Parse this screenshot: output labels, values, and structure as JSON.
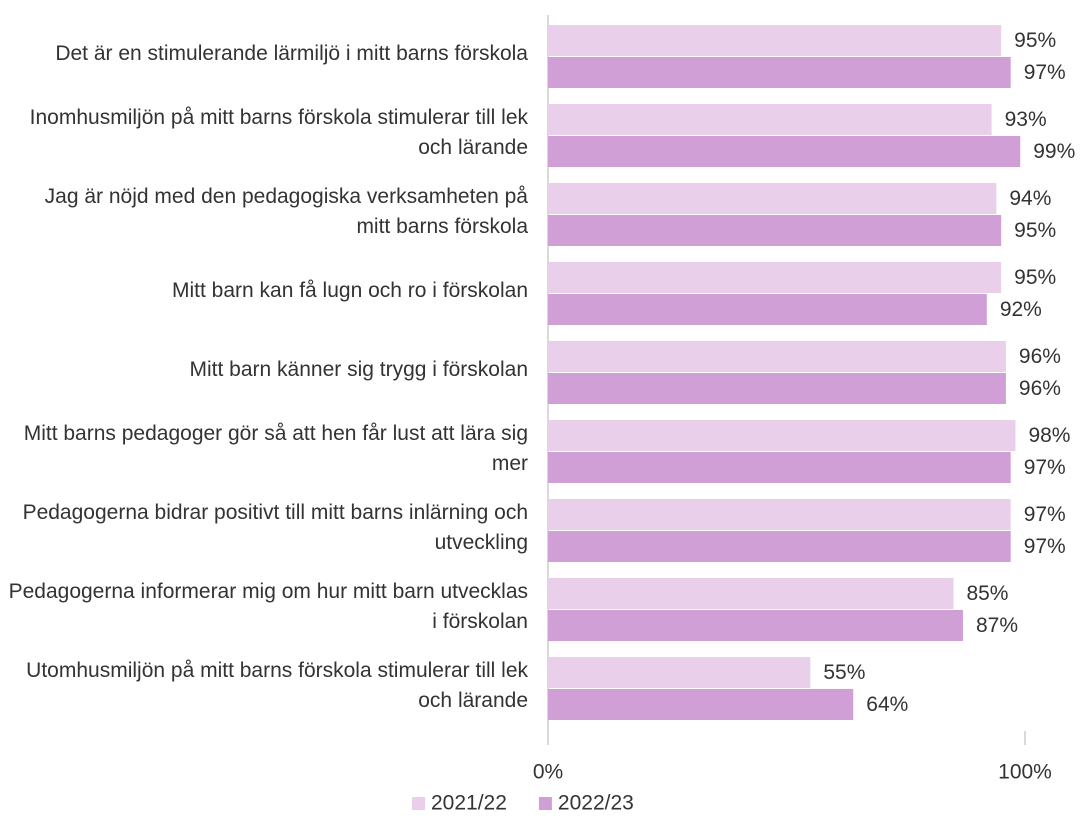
{
  "chart_data": {
    "type": "bar",
    "orientation": "horizontal",
    "categories": [
      "Det är en stimulerande lärmiljö i mitt barns förskola",
      "Inomhusmiljön på mitt barns förskola stimulerar till lek och lärande",
      "Jag är nöjd med den pedagogiska verksamheten på mitt barns förskola",
      "Mitt barn kan få lugn och ro i förskolan",
      "Mitt barn känner sig trygg i förskolan",
      "Mitt barns pedagoger gör så att hen får lust att lära sig mer",
      "Pedagogerna bidrar positivt till mitt barns inlärning och utveckling",
      "Pedagogerna informerar mig om hur mitt barn utvecklas i förskolan",
      "Utomhusmiljön på mitt barns förskola stimulerar till lek och lärande"
    ],
    "series": [
      {
        "name": "2021/22",
        "color": "#e9cfe9",
        "values": [
          95,
          93,
          94,
          95,
          96,
          98,
          97,
          85,
          55
        ],
        "value_labels": [
          "95%",
          "93%",
          "94%",
          "95%",
          "96%",
          "98%",
          "97%",
          "85%",
          "55%"
        ]
      },
      {
        "name": "2022/23",
        "color": "#d09fd6",
        "values": [
          97,
          99,
          95,
          92,
          96,
          97,
          97,
          87,
          64
        ],
        "value_labels": [
          "97%",
          "99%",
          "95%",
          "92%",
          "96%",
          "97%",
          "97%",
          "87%",
          "64%"
        ]
      }
    ],
    "xlim": [
      0,
      100
    ],
    "xticks": [
      {
        "value": 0,
        "label": "0%"
      },
      {
        "value": 100,
        "label": "100%"
      }
    ],
    "legend": "bottom"
  }
}
